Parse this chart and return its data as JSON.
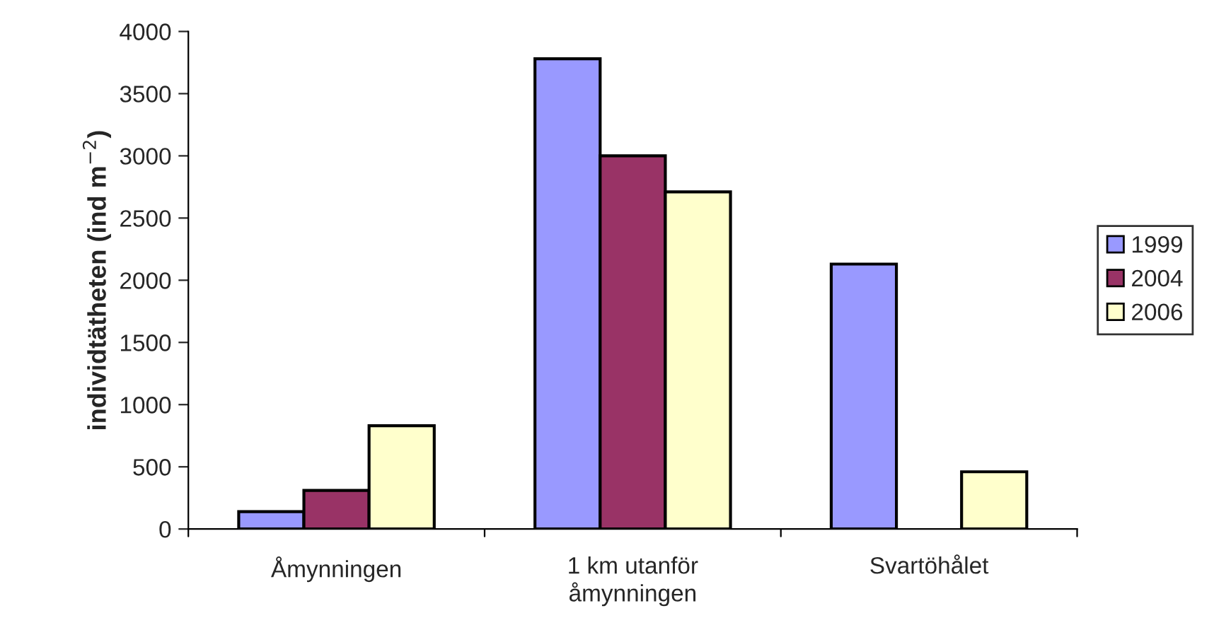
{
  "chart_data": {
    "type": "bar",
    "ylabel": "individtätheten (ind m$^{−2}$)",
    "categories": [
      "Åmynningen",
      "1 km utanför\nåmynningen",
      "Svartöhålet"
    ],
    "series": [
      {
        "name": "1999",
        "color": "#9999ff",
        "values": [
          140,
          3780,
          2130
        ]
      },
      {
        "name": "2004",
        "color": "#993366",
        "values": [
          310,
          3000,
          null
        ]
      },
      {
        "name": "2006",
        "color": "#ffffcc",
        "values": [
          830,
          2710,
          460
        ]
      }
    ],
    "ylim": [
      0,
      4000
    ],
    "yticks": [
      0,
      500,
      1000,
      1500,
      2000,
      2500,
      3000,
      3500,
      4000
    ],
    "grid": false,
    "legend": "right"
  }
}
